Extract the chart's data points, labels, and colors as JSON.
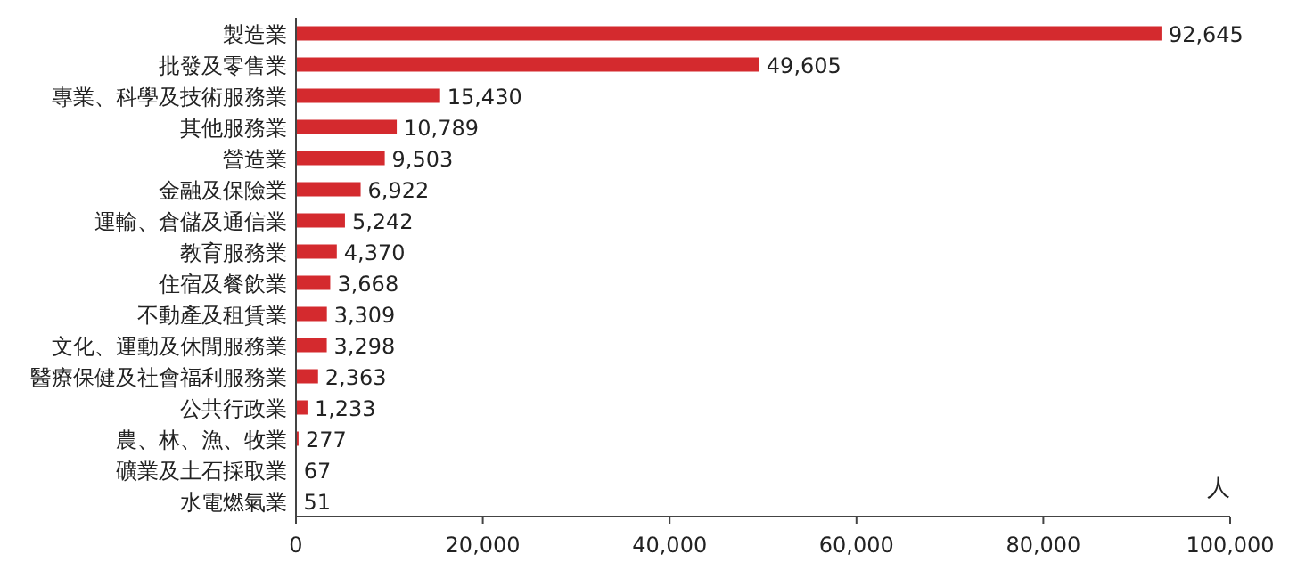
{
  "chart_data": {
    "type": "bar",
    "orientation": "horizontal",
    "categories": [
      "製造業",
      "批發及零售業",
      "專業、科學及技術服務業",
      "其他服務業",
      "營造業",
      "金融及保險業",
      "運輸、倉儲及通信業",
      "教育服務業",
      "住宿及餐飲業",
      "不動產及租賃業",
      "文化、運動及休閒服務業",
      "醫療保健及社會福利服務業",
      "公共行政業",
      "農、林、漁、牧業",
      "礦業及土石採取業",
      "水電燃氣業"
    ],
    "values": [
      92645,
      49605,
      15430,
      10789,
      9503,
      6922,
      5242,
      4370,
      3668,
      3309,
      3298,
      2363,
      1233,
      277,
      67,
      51
    ],
    "value_labels": [
      "92,645",
      "49,605",
      "15,430",
      "10,789",
      "9,503",
      "6,922",
      "5,242",
      "4,370",
      "3,668",
      "3,309",
      "3,298",
      "2,363",
      "1,233",
      "277",
      "67",
      "51"
    ],
    "color": "#d42a2e",
    "xlim": [
      0,
      100000
    ],
    "xticks": [
      0,
      {
        "value": 20000,
        "label": "20,000"
      },
      {
        "value": 40000,
        "label": "40,000"
      },
      {
        "value": 60000,
        "label": "60,000"
      },
      {
        "value": 80000,
        "label": "80,000"
      },
      {
        "value": 100000,
        "label": "100,000"
      }
    ],
    "annotations": [
      "人"
    ],
    "grid": false
  }
}
